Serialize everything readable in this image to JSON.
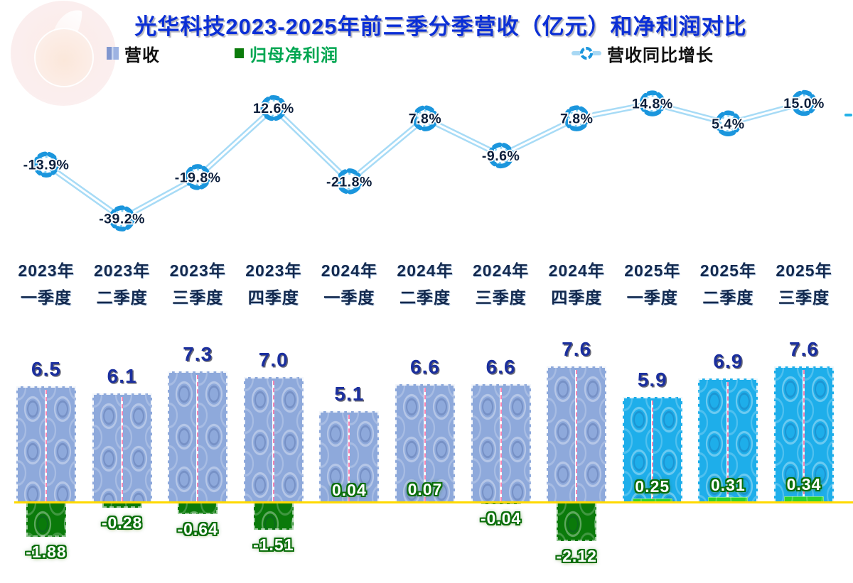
{
  "title": "光华科技2023-2025年前三季分季营收（亿元）和净利润对比",
  "legend": {
    "revenue": "营收",
    "profit": "归母净利润",
    "growth": "营收同比增长"
  },
  "colors": {
    "title_text": "#0B2FD6",
    "revenue_bar_2023_2024": "#8EA9DB",
    "revenue_bar_2025": "#1EAEEA",
    "profit_bar_negative": "#0A7A0A",
    "profit_bar_positive_small": "#0A7A0A",
    "profit_bar_positive_2025": "#2FD32F",
    "growth_line_outer": "#A7DBF6",
    "growth_line_inner": "#FFFFFF",
    "growth_marker_ring": "#1B96DD",
    "axis_line": "#FFD900",
    "revenue_value_text": "#1B2F9E",
    "growth_value_text": "#0D1F3C",
    "profit_value_text": "#FFFFFF",
    "profit_legend_text": "#00A651",
    "xaxis_text": "#13294E"
  },
  "chart_data": {
    "type": "bar+line",
    "title": "光华科技2023-2025年前三季分季营收（亿元）和净利润对比",
    "unit": "亿元",
    "legend_position": "top",
    "grid": false,
    "highlight_start_index": 8,
    "categories": [
      {
        "year": "2023年",
        "quarter": "一季度"
      },
      {
        "year": "2023年",
        "quarter": "二季度"
      },
      {
        "year": "2023年",
        "quarter": "三季度"
      },
      {
        "year": "2023年",
        "quarter": "四季度"
      },
      {
        "year": "2024年",
        "quarter": "一季度"
      },
      {
        "year": "2024年",
        "quarter": "二季度"
      },
      {
        "year": "2024年",
        "quarter": "三季度"
      },
      {
        "year": "2024年",
        "quarter": "四季度"
      },
      {
        "year": "2025年",
        "quarter": "一季度"
      },
      {
        "year": "2025年",
        "quarter": "二季度"
      },
      {
        "year": "2025年",
        "quarter": "三季度"
      }
    ],
    "series": [
      {
        "name": "营收",
        "type": "bar",
        "values": [
          6.5,
          6.1,
          7.3,
          7.0,
          5.1,
          6.6,
          6.6,
          7.6,
          5.9,
          6.9,
          7.6
        ],
        "labels": [
          "6.5",
          "6.1",
          "7.3",
          "7.0",
          "5.1",
          "6.6",
          "6.6",
          "7.6",
          "5.9",
          "6.9",
          "7.6"
        ]
      },
      {
        "name": "归母净利润",
        "type": "bar",
        "values": [
          -1.88,
          -0.28,
          -0.64,
          -1.51,
          0.04,
          0.07,
          -0.04,
          -2.12,
          0.25,
          0.31,
          0.34
        ],
        "labels": [
          "-1.88",
          "-0.28",
          "-0.64",
          "-1.51",
          "0.04",
          "0.07",
          "-0.04",
          "-2.12",
          "0.25",
          "0.31",
          "0.34"
        ]
      },
      {
        "name": "营收同比增长",
        "type": "line",
        "values": [
          -13.9,
          -39.2,
          -19.8,
          12.6,
          -21.8,
          7.8,
          -9.6,
          7.8,
          14.8,
          5.4,
          15.0
        ],
        "labels": [
          "-13.9%",
          "-39.2%",
          "-19.8%",
          "12.6%",
          "-21.8%",
          "7.8%",
          "-9.6%",
          "7.8%",
          "14.8%",
          "5.4%",
          "15.0%"
        ]
      }
    ],
    "ylim_bars": [
      -2.5,
      8
    ],
    "ylim_line_pct": [
      -45,
      20
    ]
  }
}
